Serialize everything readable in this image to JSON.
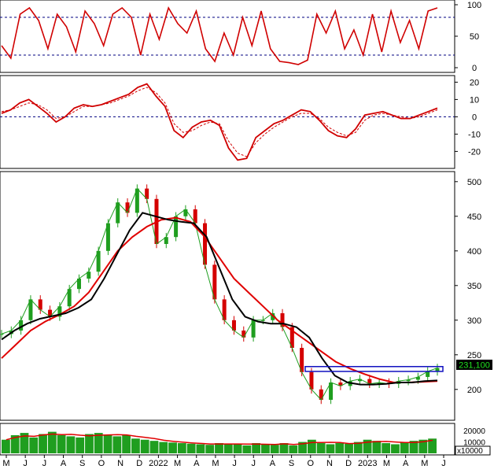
{
  "chart_data": [
    {
      "panel": "stochastic",
      "type": "line",
      "ylim": [
        0,
        100
      ],
      "yticks": [
        0,
        50,
        100
      ],
      "reference_lines": [
        20,
        80
      ],
      "series": [
        {
          "values": [
            35,
            15,
            85,
            95,
            75,
            30,
            85,
            65,
            25,
            90,
            70,
            35,
            85,
            95,
            80,
            20,
            85,
            45,
            95,
            70,
            55,
            90,
            30,
            10,
            55,
            20,
            80,
            35,
            90,
            30,
            10,
            8,
            5,
            12,
            85,
            55,
            90,
            30,
            60,
            20,
            85,
            25,
            90,
            40,
            75,
            30,
            90,
            95
          ]
        }
      ]
    },
    {
      "panel": "macd",
      "type": "line",
      "ylim": [
        -28,
        22
      ],
      "yticks": [
        -20,
        -10,
        0,
        10,
        20
      ],
      "reference_lines": [
        0
      ],
      "series": [
        {
          "values": [
            2,
            4,
            8,
            10,
            6,
            2,
            -3,
            0,
            5,
            7,
            6,
            7,
            9,
            11,
            13,
            17,
            19,
            12,
            6,
            -8,
            -12,
            -6,
            -3,
            -2,
            -5,
            -18,
            -25,
            -24,
            -12,
            -8,
            -4,
            -2,
            1,
            4,
            3,
            -2,
            -8,
            -11,
            -12,
            -7,
            1,
            2,
            3,
            1,
            -1,
            -1,
            1,
            3,
            5
          ]
        },
        {
          "values": [
            3,
            4,
            6,
            8,
            7,
            4,
            -1,
            0,
            3,
            6,
            6,
            7,
            8,
            10,
            12,
            15,
            17,
            14,
            8,
            -4,
            -9,
            -8,
            -5,
            -3,
            -4,
            -14,
            -21,
            -23,
            -15,
            -10,
            -6,
            -3,
            0,
            2,
            2,
            -1,
            -6,
            -9,
            -11,
            -9,
            -2,
            1,
            2,
            1,
            0,
            -1,
            0,
            2,
            4
          ]
        }
      ]
    },
    {
      "panel": "price",
      "type": "line",
      "ylim": [
        160,
        510
      ],
      "yticks": [
        200,
        250,
        300,
        350,
        400,
        450,
        500
      ],
      "price_label": "231,100",
      "series": [
        {
          "values": [
            280,
            285,
            300,
            330,
            315,
            305,
            320,
            345,
            360,
            370,
            400,
            440,
            470,
            455,
            490,
            475,
            410,
            420,
            450,
            460,
            440,
            380,
            330,
            300,
            285,
            275,
            300,
            300,
            310,
            290,
            260,
            225,
            200,
            185,
            210,
            205,
            212,
            215,
            208,
            210,
            208,
            212,
            214,
            218,
            226,
            231
          ]
        },
        {
          "values": [
            272,
            285,
            295,
            302,
            306,
            310,
            318,
            330,
            360,
            395,
            430,
            455,
            450,
            445,
            442,
            440,
            420,
            375,
            330,
            305,
            298,
            295,
            295,
            290,
            275,
            245,
            220,
            210,
            207,
            207,
            208,
            210,
            210,
            212,
            213
          ]
        },
        {
          "values": [
            245,
            265,
            285,
            298,
            308,
            320,
            340,
            370,
            400,
            420,
            435,
            445,
            448,
            442,
            420,
            390,
            360,
            340,
            320,
            300,
            285,
            270,
            255,
            240,
            230,
            222,
            215,
            210,
            210,
            211,
            212
          ]
        }
      ]
    },
    {
      "panel": "volume",
      "type": "bar",
      "yticks": [
        10000,
        20000
      ],
      "unit_label": "x10000",
      "values": [
        12000,
        16000,
        18000,
        14000,
        17000,
        19000,
        16000,
        15000,
        14000,
        17000,
        18000,
        16000,
        15000,
        16000,
        13000,
        12000,
        11000,
        10000,
        9500,
        9000,
        8500,
        8000,
        7500,
        9000,
        8500,
        8000,
        7000,
        9000,
        8000,
        7500,
        9000,
        7000,
        10000,
        12000,
        9000,
        8000,
        9000,
        8500,
        10000,
        12000,
        11000,
        9000,
        8000,
        10000,
        11000,
        12000,
        13000
      ]
    }
  ],
  "x_axis": {
    "labels": [
      "M",
      "J",
      "J",
      "A",
      "S",
      "O",
      "N",
      "D",
      "2022",
      "M",
      "A",
      "M",
      "J",
      "J",
      "A",
      "S",
      "O",
      "N",
      "D",
      "2023",
      "M",
      "A",
      "M",
      "J"
    ]
  },
  "colors": {
    "price_up": "#1f9e1f",
    "price_down": "#d40000",
    "ma_short": "#000000",
    "ma_long": "#e00000",
    "indicator": "#d00000",
    "reference": "#000080",
    "box": "#1010c0",
    "price_badge_bg": "#000000",
    "price_badge_text": "#20e020"
  }
}
